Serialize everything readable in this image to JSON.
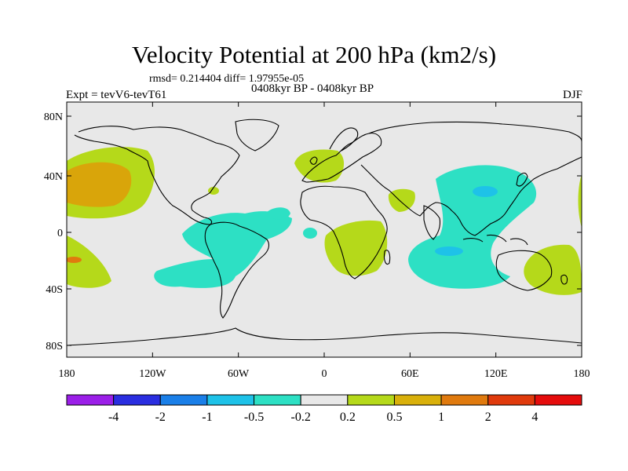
{
  "title": "Velocity Potential at 200 hPa (km2/s)",
  "stats": "rmsd= 0.214404  diff= 1.97955e-05",
  "period": "0408kyr BP - 0408kyr BP",
  "experiment": "Expt = tevV6-tevT61",
  "season": "DJF",
  "axes": {
    "x_ticks": [
      "180",
      "120W",
      "60W",
      "0",
      "60E",
      "120E",
      "180"
    ],
    "y_ticks": [
      "80N",
      "40N",
      "0",
      "40S",
      "80S"
    ]
  },
  "colorbar": {
    "colors": [
      "#9b1fe8",
      "#2a2ee0",
      "#1a7fe8",
      "#1ec2e8",
      "#2de0c4",
      "#e8e8e8",
      "#b5d91a",
      "#d9b00a",
      "#e07a0e",
      "#e03a0c",
      "#e50c0c"
    ],
    "labels": [
      "-4",
      "-2",
      "-1",
      "-0.5",
      "-0.2",
      "0.2",
      "0.5",
      "1",
      "2",
      "4"
    ]
  },
  "colors": {
    "background": "#e8e8e8",
    "positive_1": "#b5d91a",
    "positive_2": "#d9a50a",
    "positive_3": "#e07a0e",
    "negative_1": "#2de0c4",
    "negative_2": "#1ec2e8",
    "negative_3": "#1a7fe8",
    "coastline": "#000000"
  }
}
